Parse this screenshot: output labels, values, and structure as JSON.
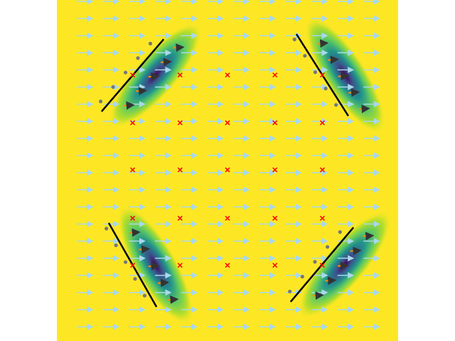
{
  "chart_data": {
    "type": "heatmap",
    "title": "",
    "xlabel": "",
    "ylabel": "",
    "axes_visible": false,
    "xlim": [
      0,
      1
    ],
    "ylim": [
      0,
      1
    ],
    "background_color": "#fde725",
    "colormap": "viridis",
    "flow_field": {
      "direction": "left-to-right",
      "color": "#a8d8ea",
      "rows": 20,
      "cols": 12
    },
    "markers": {
      "symbol": "x",
      "color": "#ff0000",
      "points": [
        [
          0.222,
          0.78
        ],
        [
          0.361,
          0.78
        ],
        [
          0.5,
          0.78
        ],
        [
          0.639,
          0.78
        ],
        [
          0.778,
          0.78
        ],
        [
          0.222,
          0.64
        ],
        [
          0.361,
          0.64
        ],
        [
          0.5,
          0.64
        ],
        [
          0.639,
          0.64
        ],
        [
          0.778,
          0.64
        ],
        [
          0.222,
          0.502
        ],
        [
          0.361,
          0.502
        ],
        [
          0.5,
          0.502
        ],
        [
          0.639,
          0.502
        ],
        [
          0.778,
          0.502
        ],
        [
          0.222,
          0.36
        ],
        [
          0.361,
          0.36
        ],
        [
          0.5,
          0.36
        ],
        [
          0.639,
          0.36
        ],
        [
          0.778,
          0.36
        ],
        [
          0.222,
          0.222
        ],
        [
          0.361,
          0.222
        ],
        [
          0.5,
          0.222
        ],
        [
          0.639,
          0.222
        ],
        [
          0.778,
          0.222
        ]
      ]
    },
    "wings": [
      {
        "name": "upper-left",
        "segment": [
          [
            0.131,
            0.673
          ],
          [
            0.313,
            0.885
          ]
        ],
        "dot_side": "left"
      },
      {
        "name": "upper-right",
        "segment": [
          [
            0.702,
            0.9
          ],
          [
            0.854,
            0.66
          ]
        ],
        "dot_side": "left"
      },
      {
        "name": "lower-left",
        "segment": [
          [
            0.152,
            0.346
          ],
          [
            0.292,
            0.1
          ]
        ],
        "dot_side": "left"
      },
      {
        "name": "lower-right",
        "segment": [
          [
            0.685,
            0.115
          ],
          [
            0.869,
            0.333
          ]
        ],
        "dot_side": "left"
      }
    ],
    "segment_color": "#000000",
    "dot_color": "#777777",
    "wake_arrow_color": "#ff8c00"
  }
}
